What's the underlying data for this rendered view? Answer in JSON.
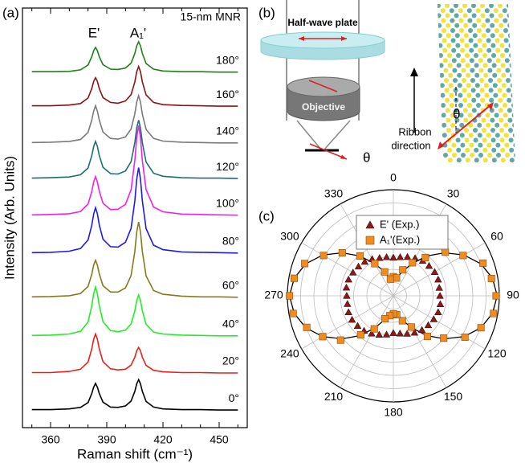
{
  "chart_data": [
    {
      "type": "line",
      "panel": "(a)",
      "title": "15-nm MNR",
      "xlabel": "Raman shift (cm⁻¹)",
      "ylabel": "Intensity (Arb. Units)",
      "annotations": [
        "E'",
        "A₁'"
      ],
      "xlim": [
        345,
        465
      ],
      "xticks": [
        360,
        390,
        420,
        450
      ],
      "xminorticks": [
        350,
        370,
        380,
        400,
        410,
        430,
        440,
        460
      ],
      "ylim": [
        0,
        11.2
      ],
      "x": [
        350,
        360,
        370,
        376,
        380,
        382,
        383,
        384,
        385,
        386,
        388,
        392,
        396,
        400,
        403,
        405,
        406,
        407,
        408,
        409,
        411,
        415,
        420,
        430,
        440,
        450,
        460
      ],
      "series": [
        {
          "name": "0°",
          "color": "#000000",
          "values": [
            0.48,
            0.48,
            0.5,
            0.54,
            0.67,
            0.91,
            1.08,
            1.18,
            1.08,
            0.91,
            0.68,
            0.55,
            0.54,
            0.58,
            0.71,
            0.97,
            1.17,
            1.28,
            1.17,
            0.97,
            0.7,
            0.55,
            0.5,
            0.48,
            0.48,
            0.47,
            0.47
          ]
        },
        {
          "name": "20°",
          "color": "#e8201c",
          "values": [
            1.47,
            1.47,
            1.5,
            1.56,
            1.75,
            2.1,
            2.36,
            2.5,
            2.36,
            2.1,
            1.76,
            1.57,
            1.54,
            1.56,
            1.67,
            1.88,
            2.05,
            2.14,
            2.05,
            1.88,
            1.66,
            1.53,
            1.49,
            1.47,
            1.47,
            1.46,
            1.46
          ]
        },
        {
          "name": "40°",
          "color": "#22ee22",
          "values": [
            2.46,
            2.47,
            2.5,
            2.57,
            2.82,
            3.25,
            3.57,
            3.75,
            3.57,
            3.25,
            2.83,
            2.59,
            2.56,
            2.6,
            2.77,
            3.12,
            3.39,
            3.54,
            3.39,
            3.12,
            2.76,
            2.55,
            2.5,
            2.47,
            2.46,
            2.45,
            2.45
          ]
        },
        {
          "name": "60°",
          "color": "#857a1c",
          "values": [
            3.49,
            3.5,
            3.52,
            3.58,
            3.77,
            4.09,
            4.34,
            4.47,
            4.34,
            4.1,
            3.79,
            3.62,
            3.62,
            3.73,
            4.06,
            4.71,
            5.22,
            5.49,
            5.22,
            4.71,
            4.05,
            3.66,
            3.56,
            3.51,
            3.49,
            3.49,
            3.48
          ]
        },
        {
          "name": "80°",
          "color": "#1c1ce8",
          "values": [
            4.67,
            4.68,
            4.71,
            4.78,
            5.01,
            5.4,
            5.7,
            5.87,
            5.71,
            5.41,
            5.03,
            4.83,
            4.82,
            4.95,
            5.32,
            6.06,
            6.63,
            6.94,
            6.63,
            6.06,
            5.31,
            4.87,
            4.75,
            4.69,
            4.68,
            4.67,
            4.66
          ]
        },
        {
          "name": "100°",
          "color": "#ee22ee",
          "values": [
            5.68,
            5.69,
            5.71,
            5.77,
            5.97,
            6.3,
            6.56,
            6.7,
            6.56,
            6.31,
            5.99,
            5.82,
            5.83,
            5.96,
            6.35,
            7.14,
            7.74,
            8.06,
            7.74,
            7.13,
            6.35,
            5.89,
            5.76,
            5.7,
            5.69,
            5.68,
            5.67
          ]
        },
        {
          "name": "120°",
          "color": "#1f6e6e",
          "values": [
            6.66,
            6.67,
            6.69,
            6.75,
            6.93,
            7.26,
            7.5,
            7.64,
            7.51,
            7.26,
            6.95,
            6.78,
            6.77,
            6.85,
            7.1,
            7.61,
            8.0,
            8.21,
            8.0,
            7.61,
            7.09,
            6.79,
            6.71,
            6.67,
            6.66,
            6.66,
            6.65
          ]
        },
        {
          "name": "140°",
          "color": "#7a7a7a",
          "values": [
            7.61,
            7.62,
            7.64,
            7.69,
            7.88,
            8.21,
            8.45,
            8.59,
            8.45,
            8.21,
            7.89,
            7.72,
            7.7,
            7.76,
            7.97,
            8.38,
            8.69,
            8.86,
            8.69,
            8.37,
            7.96,
            7.72,
            7.65,
            7.62,
            7.61,
            7.6,
            7.6
          ]
        },
        {
          "name": "160°",
          "color": "#8b1212",
          "values": [
            8.59,
            8.59,
            8.61,
            8.65,
            8.8,
            9.05,
            9.24,
            9.34,
            9.24,
            9.05,
            8.81,
            8.68,
            8.66,
            8.72,
            8.89,
            9.23,
            9.5,
            9.64,
            9.5,
            9.23,
            8.88,
            8.68,
            8.62,
            8.6,
            8.59,
            8.58,
            8.58
          ]
        },
        {
          "name": "180°",
          "color": "#1c801c",
          "values": [
            9.5,
            9.5,
            9.51,
            9.55,
            9.68,
            9.9,
            10.06,
            10.15,
            10.06,
            9.9,
            9.69,
            9.57,
            9.56,
            9.6,
            9.73,
            9.99,
            10.19,
            10.3,
            10.19,
            9.99,
            9.72,
            9.57,
            9.52,
            9.5,
            9.5,
            9.49,
            9.49
          ]
        }
      ]
    },
    {
      "type": "polar",
      "panel": "(c)",
      "thetaticks": [
        0,
        30,
        60,
        90,
        120,
        150,
        180,
        210,
        240,
        270,
        300,
        330
      ],
      "rlim": [
        0,
        1
      ],
      "rticks": [
        0.125,
        0.25,
        0.375,
        0.5,
        0.625,
        0.75,
        0.875,
        1
      ],
      "theta": [
        0,
        10,
        20,
        30,
        40,
        50,
        60,
        70,
        80,
        90,
        100,
        110,
        120,
        130,
        140,
        150,
        160,
        170,
        180,
        190,
        200,
        210,
        220,
        230,
        240,
        250,
        260,
        270,
        280,
        290,
        300,
        310,
        320,
        330,
        340,
        350
      ],
      "series": [
        {
          "name": "E' (Exp.)",
          "color": "#8b1a1a",
          "marker": "triangle",
          "values": [
            0.36,
            0.37,
            0.39,
            0.41,
            0.43,
            0.44,
            0.45,
            0.45,
            0.44,
            0.44,
            0.45,
            0.45,
            0.44,
            0.43,
            0.42,
            0.4,
            0.38,
            0.36,
            0.35,
            0.37,
            0.39,
            0.41,
            0.43,
            0.44,
            0.45,
            0.45,
            0.44,
            0.44,
            0.45,
            0.45,
            0.44,
            0.43,
            0.42,
            0.4,
            0.38,
            0.37
          ]
        },
        {
          "name": "A₁'(Exp.)",
          "color": "#f08c1e",
          "marker": "square",
          "values": [
            0.18,
            0.17,
            0.26,
            0.36,
            0.47,
            0.64,
            0.76,
            0.9,
            0.94,
            0.97,
            0.96,
            0.88,
            0.78,
            0.62,
            0.5,
            0.34,
            0.25,
            0.18,
            0.17,
            0.19,
            0.23,
            0.36,
            0.48,
            0.65,
            0.77,
            0.87,
            0.96,
            0.98,
            0.95,
            0.89,
            0.76,
            0.63,
            0.49,
            0.35,
            0.24,
            0.16
          ]
        }
      ],
      "fit": {
        "color": "#000000",
        "theta": [
          0,
          10,
          20,
          30,
          40,
          50,
          60,
          70,
          80,
          90,
          100,
          110,
          120,
          130,
          140,
          150,
          160,
          170,
          180,
          190,
          200,
          210,
          220,
          230,
          240,
          250,
          260,
          270,
          280,
          290,
          300,
          310,
          320,
          330,
          340,
          350,
          360
        ],
        "values": [
          0.14,
          0.165,
          0.24,
          0.35,
          0.49,
          0.63,
          0.77,
          0.88,
          0.95,
          0.98,
          0.95,
          0.88,
          0.77,
          0.63,
          0.49,
          0.35,
          0.24,
          0.165,
          0.14,
          0.165,
          0.24,
          0.35,
          0.49,
          0.63,
          0.77,
          0.88,
          0.95,
          0.98,
          0.95,
          0.88,
          0.77,
          0.63,
          0.49,
          0.35,
          0.24,
          0.165,
          0.14
        ]
      }
    }
  ],
  "diagram": {
    "panel": "(b)",
    "plate_label": "Half-wave plate",
    "objective_label": "Objective",
    "angle_labels": [
      "θ",
      "θ"
    ],
    "ribbon_label": [
      "Ribbon",
      "direction"
    ]
  }
}
